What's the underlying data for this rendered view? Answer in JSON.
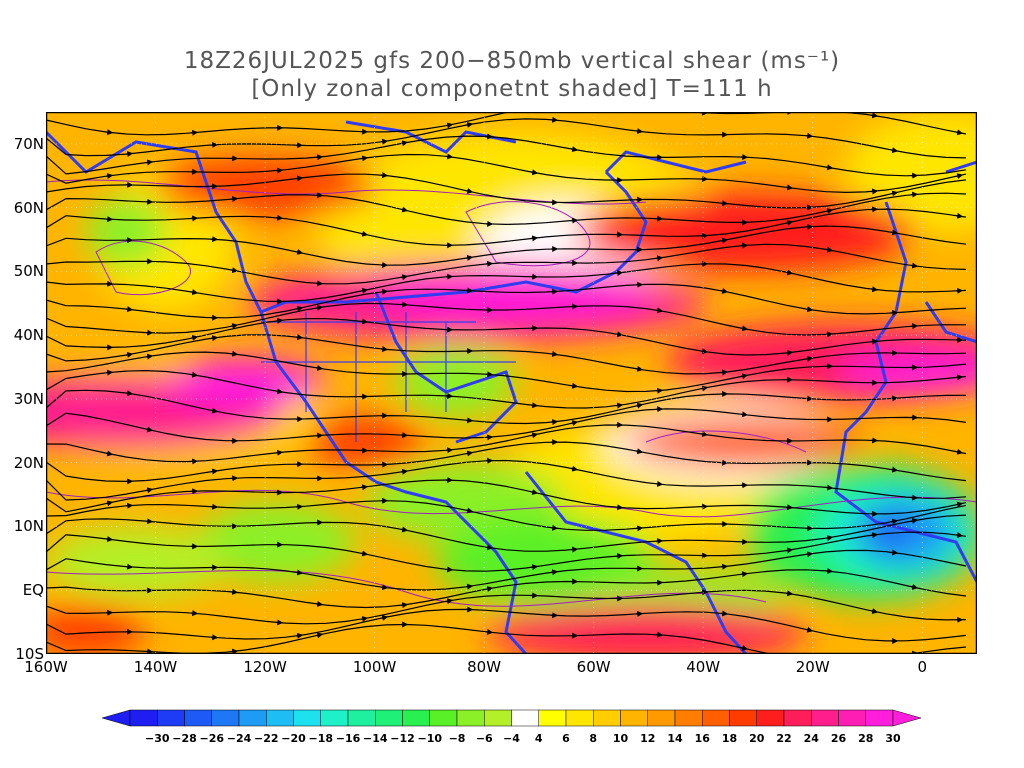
{
  "title": {
    "line1": "18Z26JUL2025 gfs 200−850mb vertical shear (ms⁻¹)",
    "line2": "[Only zonal componetnt shaded] T=111 h"
  },
  "map": {
    "lon_range": [
      -160,
      10
    ],
    "lat_range": [
      -10,
      75
    ],
    "lat_labels": [
      {
        "lat": 70,
        "text": "70N"
      },
      {
        "lat": 60,
        "text": "60N"
      },
      {
        "lat": 50,
        "text": "50N"
      },
      {
        "lat": 40,
        "text": "40N"
      },
      {
        "lat": 30,
        "text": "30N"
      },
      {
        "lat": 20,
        "text": "20N"
      },
      {
        "lat": 10,
        "text": "10N"
      },
      {
        "lat": 0,
        "text": "EQ"
      },
      {
        "lat": -10,
        "text": "10S"
      }
    ],
    "lon_labels": [
      {
        "lon": -160,
        "text": "160W"
      },
      {
        "lon": -140,
        "text": "140W"
      },
      {
        "lon": -120,
        "text": "120W"
      },
      {
        "lon": -100,
        "text": "100W"
      },
      {
        "lon": -80,
        "text": "80W"
      },
      {
        "lon": -60,
        "text": "60W"
      },
      {
        "lon": -40,
        "text": "40W"
      },
      {
        "lon": -20,
        "text": "20W"
      },
      {
        "lon": 0,
        "text": "0"
      }
    ],
    "coastline_color": "#2f3cf0",
    "streamline_color": "#000000",
    "contour_color": "#a020c0"
  },
  "colorbar": {
    "labels": [
      "−30",
      "−28",
      "−26",
      "−24",
      "−22",
      "−20",
      "−18",
      "−16",
      "−14",
      "−12",
      "−10",
      "−8",
      "−6",
      "−4",
      "4",
      "6",
      "8",
      "10",
      "12",
      "14",
      "16",
      "18",
      "20",
      "22",
      "24",
      "26",
      "28",
      "30"
    ],
    "colors": [
      "#1e1ef0",
      "#1e3cf5",
      "#1e5af5",
      "#1e78f5",
      "#1e9bf5",
      "#1ebef5",
      "#1ee1f0",
      "#1ef0c8",
      "#1ef0a0",
      "#1ef078",
      "#28f050",
      "#5af028",
      "#8cf028",
      "#b4f028",
      "#ffffff",
      "#ffff00",
      "#ffe600",
      "#ffcd00",
      "#ffb400",
      "#ff9b00",
      "#ff7d00",
      "#ff5f00",
      "#ff3c00",
      "#ff1e1e",
      "#ff1e5a",
      "#ff1e8c",
      "#ff1eb4",
      "#ff1edc"
    ],
    "min_arrow_color": "#1e1ef0",
    "max_arrow_color": "#ff1edc"
  }
}
